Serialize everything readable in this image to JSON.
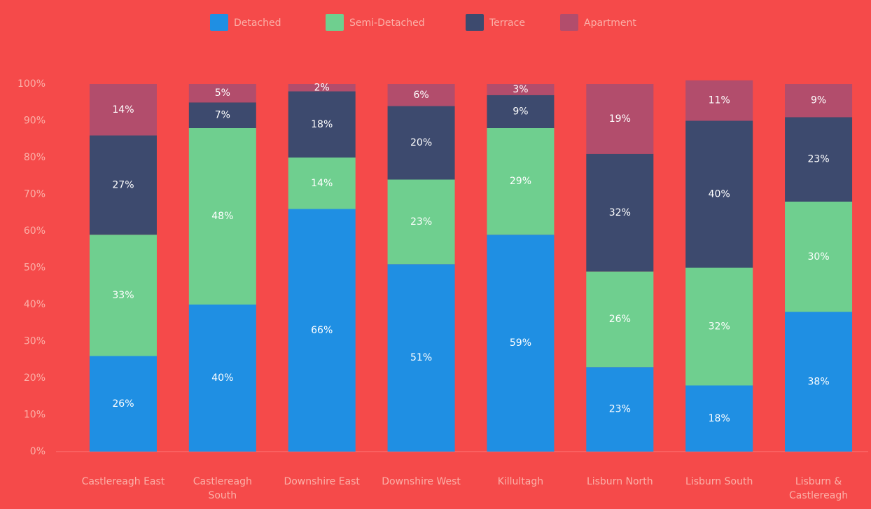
{
  "chart_data": {
    "type": "stacked_bar",
    "categories": [
      "Castlereagh East",
      "Castlereagh South",
      "Downshire East",
      "Downshire West",
      "Killultagh",
      "Lisburn North",
      "Lisburn South",
      "Lisburn & Castlereagh"
    ],
    "series": [
      {
        "name": "Detached",
        "color": "#1f8fe3",
        "values": [
          26,
          40,
          66,
          51,
          59,
          23,
          18,
          38
        ],
        "value_labels": [
          "26%",
          "40%",
          "66%",
          "51%",
          "59%",
          "23%",
          "18%",
          "38%"
        ]
      },
      {
        "name": "Semi-Detached",
        "color": "#6fcf8f",
        "values": [
          33,
          48,
          14,
          23,
          29,
          26,
          32,
          30
        ],
        "value_labels": [
          "33%",
          "48%",
          "14%",
          "23%",
          "29%",
          "26%",
          "32%",
          "30%"
        ]
      },
      {
        "name": "Terrace",
        "color": "#3d4a6e",
        "values": [
          27,
          7,
          18,
          20,
          9,
          32,
          40,
          23
        ],
        "value_labels": [
          "27%",
          "7%",
          "18%",
          "20%",
          "9%",
          "32%",
          "40%",
          "23%"
        ]
      },
      {
        "name": "Apartment",
        "color": "#b24d6c",
        "values": [
          14,
          5,
          2,
          6,
          3,
          19,
          11,
          9
        ],
        "value_labels": [
          "14%",
          "5%",
          "2%",
          "6%",
          "3%",
          "19%",
          "11%",
          "9%"
        ]
      }
    ],
    "ylim": [
      0,
      100
    ],
    "yticks": [
      {
        "value": 0,
        "label": "0%"
      },
      {
        "value": 10,
        "label": "10%"
      },
      {
        "value": 20,
        "label": "20%"
      },
      {
        "value": 30,
        "label": "30%"
      },
      {
        "value": 40,
        "label": "40%"
      },
      {
        "value": 50,
        "label": "50%"
      },
      {
        "value": 60,
        "label": "60%"
      },
      {
        "value": 70,
        "label": "70%"
      },
      {
        "value": 80,
        "label": "80%"
      },
      {
        "value": 90,
        "label": "90%"
      },
      {
        "value": 100,
        "label": "100%"
      }
    ],
    "legend": "top"
  }
}
